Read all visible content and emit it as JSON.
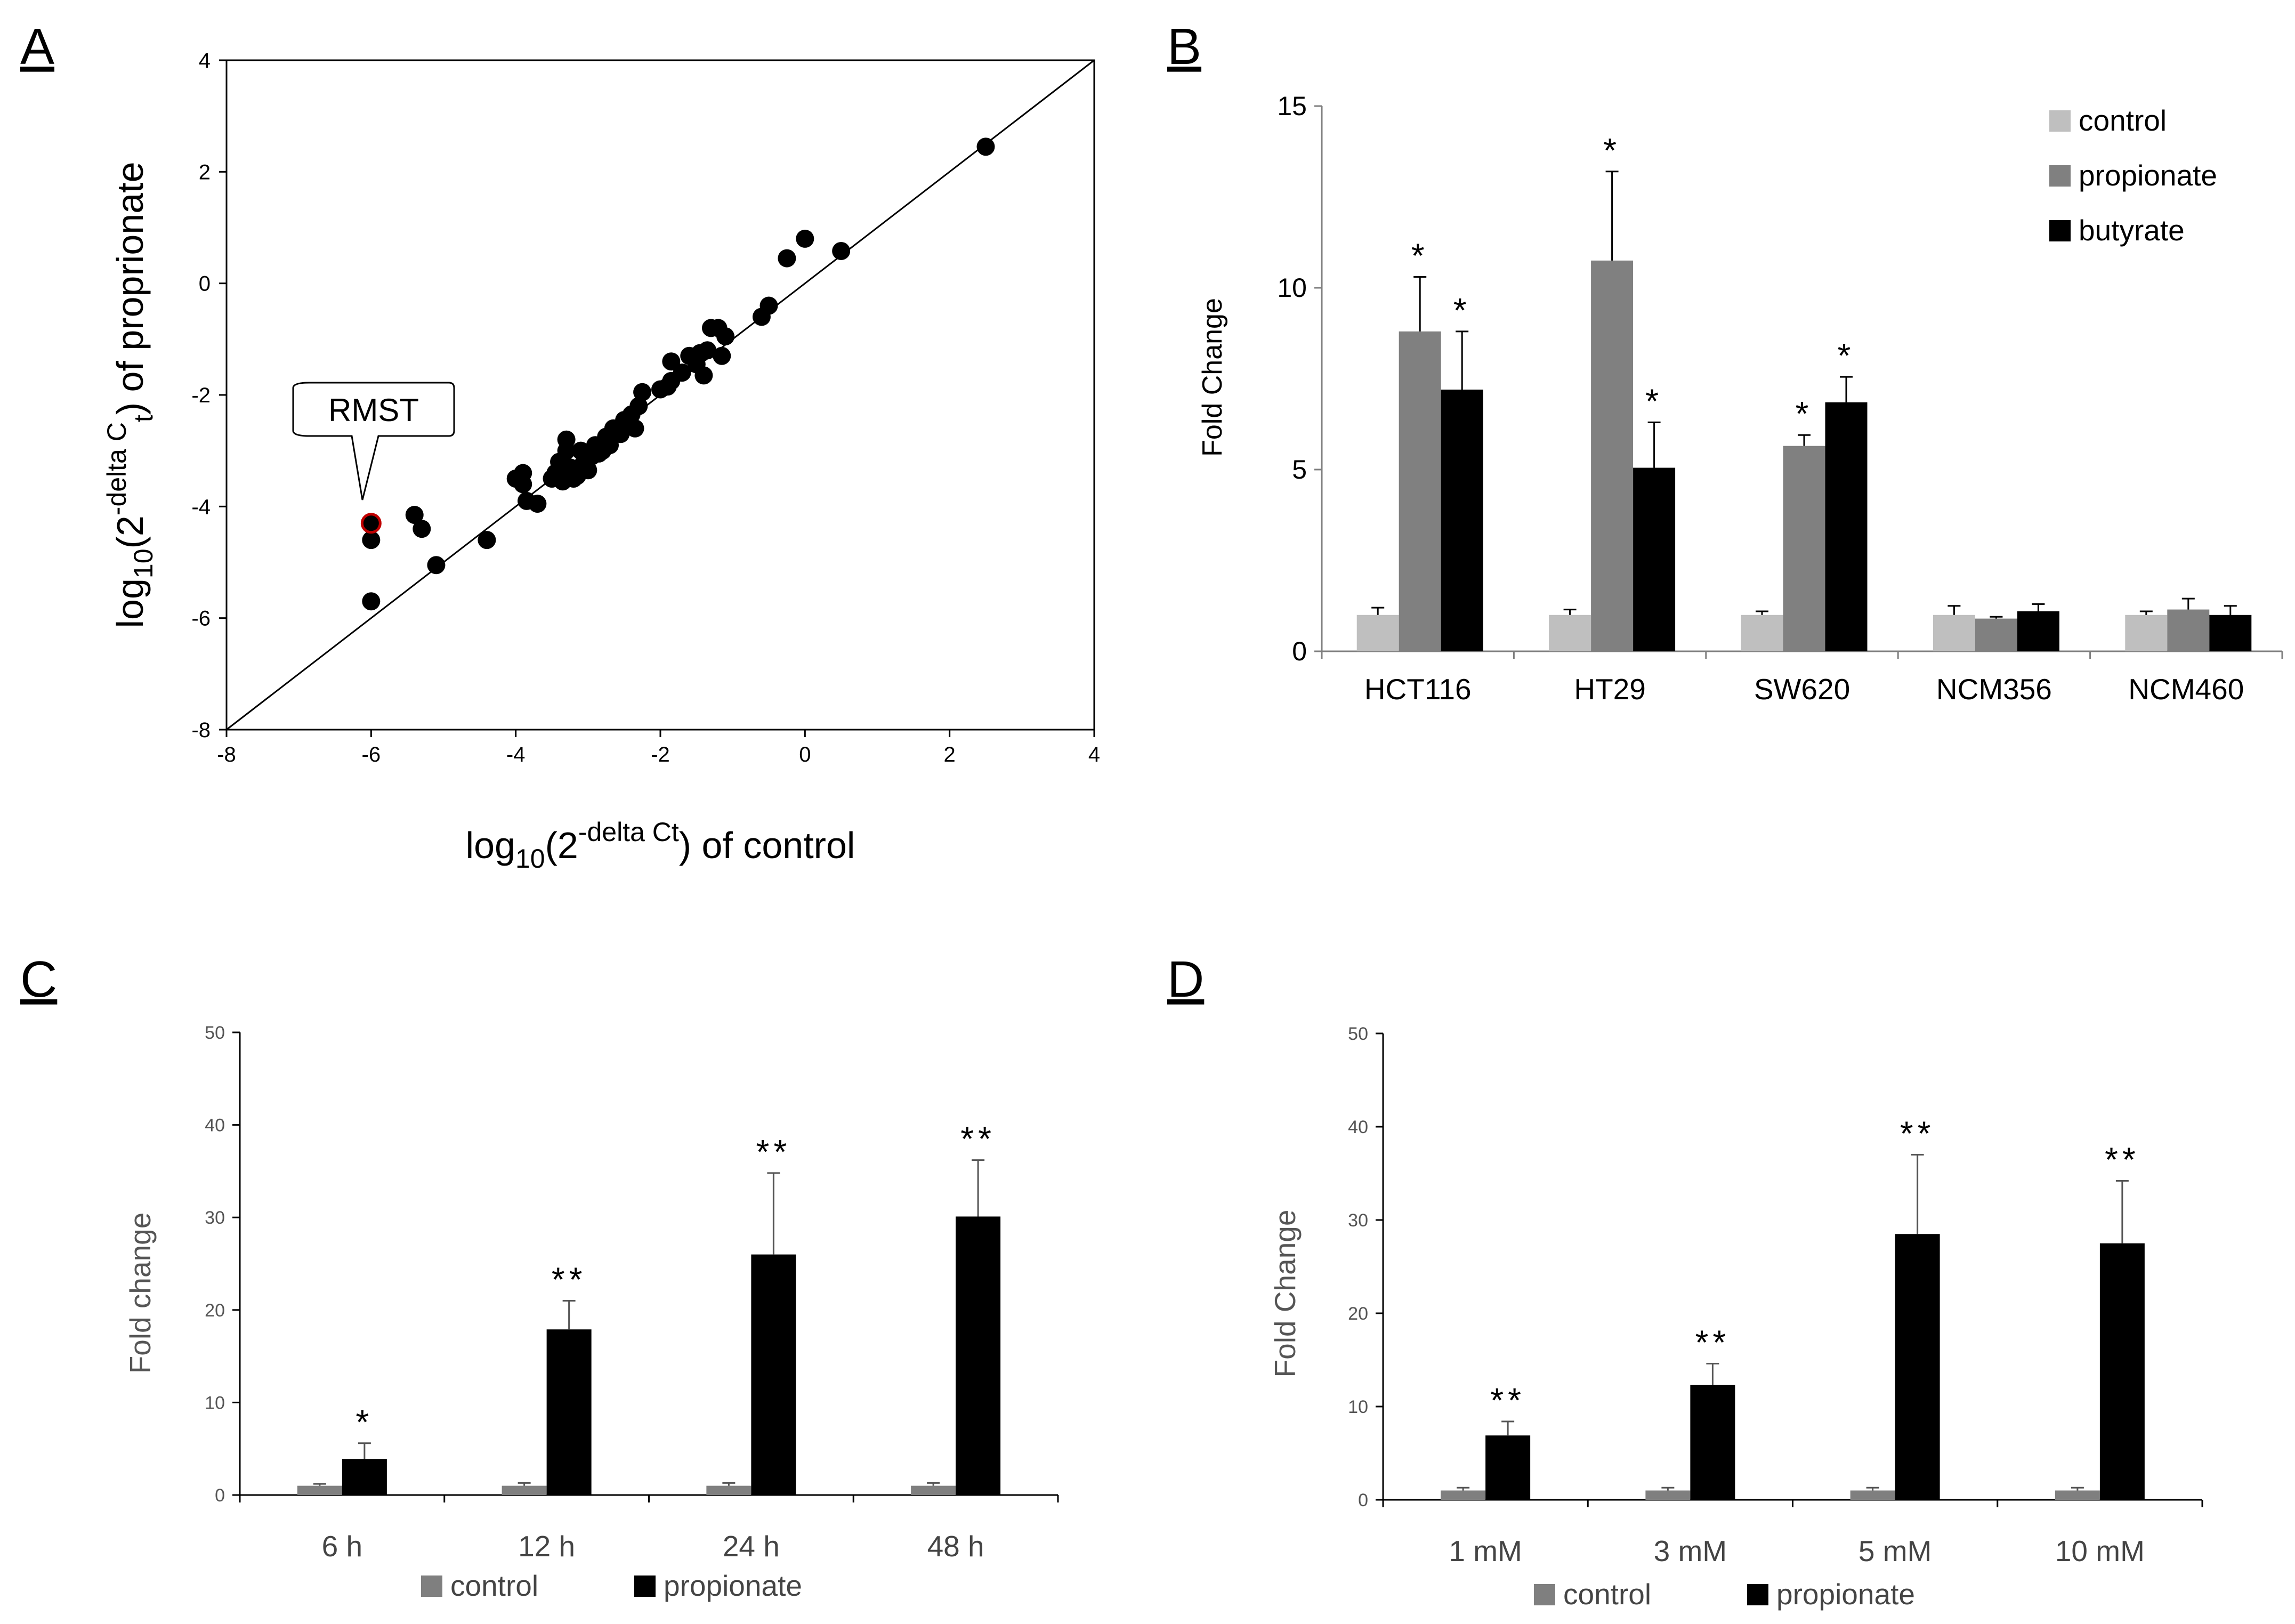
{
  "chart_data": [
    {
      "panel": "A",
      "type": "scatter",
      "xlabel_pre": "log",
      "xlabel_sub": "10",
      "xlabel_mid": "(2",
      "xlabel_sup": "-delta Ct",
      "xlabel_post": ") of control",
      "ylabel_pre": "log",
      "ylabel_sub": "10",
      "ylabel_mid": "(2",
      "ylabel_sup": "-delta C",
      "ylabel_sub2": "t",
      "ylabel_post": ") of proprionate",
      "xlim": [
        -8,
        4
      ],
      "ylim": [
        -8,
        4
      ],
      "xticks": [
        "-8",
        "-6",
        "-4",
        "-2",
        "0",
        "2",
        "4"
      ],
      "yticks": [
        "-8",
        "-6",
        "-4",
        "-2",
        "0",
        "2",
        "4"
      ],
      "annotation": "RMST",
      "highlight": {
        "x": -6.0,
        "y": -4.3
      },
      "points": [
        {
          "x": -6.0,
          "y": -4.6
        },
        {
          "x": -6.0,
          "y": -5.7
        },
        {
          "x": -5.4,
          "y": -4.15
        },
        {
          "x": -5.3,
          "y": -4.4
        },
        {
          "x": -5.1,
          "y": -5.05
        },
        {
          "x": -4.4,
          "y": -4.6
        },
        {
          "x": -4.0,
          "y": -3.5
        },
        {
          "x": -3.9,
          "y": -3.6
        },
        {
          "x": -3.9,
          "y": -3.4
        },
        {
          "x": -3.85,
          "y": -3.9
        },
        {
          "x": -3.7,
          "y": -3.95
        },
        {
          "x": -3.5,
          "y": -3.5
        },
        {
          "x": -3.45,
          "y": -3.4
        },
        {
          "x": -3.4,
          "y": -3.2
        },
        {
          "x": -3.35,
          "y": -3.55
        },
        {
          "x": -3.3,
          "y": -3.0
        },
        {
          "x": -3.3,
          "y": -2.8
        },
        {
          "x": -3.25,
          "y": -3.3
        },
        {
          "x": -3.2,
          "y": -3.5
        },
        {
          "x": -3.15,
          "y": -3.45
        },
        {
          "x": -3.1,
          "y": -3.0
        },
        {
          "x": -3.05,
          "y": -3.2
        },
        {
          "x": -3.0,
          "y": -3.35
        },
        {
          "x": -2.95,
          "y": -3.1
        },
        {
          "x": -2.9,
          "y": -2.9
        },
        {
          "x": -2.85,
          "y": -3.05
        },
        {
          "x": -2.8,
          "y": -3.0
        },
        {
          "x": -2.75,
          "y": -2.75
        },
        {
          "x": -2.7,
          "y": -2.9
        },
        {
          "x": -2.65,
          "y": -2.6
        },
        {
          "x": -2.6,
          "y": -2.65
        },
        {
          "x": -2.55,
          "y": -2.7
        },
        {
          "x": -2.5,
          "y": -2.45
        },
        {
          "x": -2.45,
          "y": -2.55
        },
        {
          "x": -2.4,
          "y": -2.35
        },
        {
          "x": -2.35,
          "y": -2.6
        },
        {
          "x": -2.3,
          "y": -2.2
        },
        {
          "x": -2.25,
          "y": -1.95
        },
        {
          "x": -2.0,
          "y": -1.9
        },
        {
          "x": -1.9,
          "y": -1.85
        },
        {
          "x": -1.85,
          "y": -1.75
        },
        {
          "x": -1.85,
          "y": -1.4
        },
        {
          "x": -1.7,
          "y": -1.6
        },
        {
          "x": -1.6,
          "y": -1.3
        },
        {
          "x": -1.5,
          "y": -1.45
        },
        {
          "x": -1.45,
          "y": -1.25
        },
        {
          "x": -1.4,
          "y": -1.65
        },
        {
          "x": -1.35,
          "y": -1.2
        },
        {
          "x": -1.3,
          "y": -0.8
        },
        {
          "x": -1.2,
          "y": -0.8
        },
        {
          "x": -1.15,
          "y": -1.3
        },
        {
          "x": -1.1,
          "y": -0.95
        },
        {
          "x": -0.6,
          "y": -0.6
        },
        {
          "x": -0.5,
          "y": -0.4
        },
        {
          "x": -0.25,
          "y": 0.45
        },
        {
          "x": 0.0,
          "y": 0.8
        },
        {
          "x": 0.5,
          "y": 0.58
        },
        {
          "x": 2.5,
          "y": 2.45
        }
      ]
    },
    {
      "panel": "B",
      "type": "bar",
      "ylabel": "Fold Change",
      "ylim": [
        0,
        15
      ],
      "yticks": [
        "0",
        "5",
        "10",
        "15"
      ],
      "categories": [
        "HCT116",
        "HT29",
        "SW620",
        "NCM356",
        "NCM460"
      ],
      "series": [
        {
          "name": "control",
          "color": "#bfbfbf",
          "values": [
            1.0,
            1.0,
            1.0,
            1.0,
            1.0
          ],
          "errors": [
            0.2,
            0.15,
            0.1,
            0.25,
            0.1
          ],
          "stars": [
            "",
            "",
            "",
            "",
            ""
          ]
        },
        {
          "name": "propionate",
          "color": "#808080",
          "values": [
            8.8,
            10.75,
            5.65,
            0.9,
            1.15
          ],
          "errors": [
            1.5,
            2.45,
            0.3,
            0.05,
            0.3
          ],
          "stars": [
            "*",
            "*",
            "*",
            "",
            ""
          ]
        },
        {
          "name": "butyrate",
          "color": "#000000",
          "values": [
            7.2,
            5.05,
            6.85,
            1.1,
            1.0
          ],
          "errors": [
            1.6,
            1.25,
            0.7,
            0.2,
            0.25
          ],
          "stars": [
            "*",
            "*",
            "*",
            "",
            ""
          ]
        }
      ]
    },
    {
      "panel": "C",
      "type": "bar",
      "ylabel": "Fold change",
      "ylim": [
        0,
        50
      ],
      "yticks": [
        "0",
        "10",
        "20",
        "30",
        "40",
        "50"
      ],
      "categories": [
        "6 h",
        "12 h",
        "24 h",
        "48 h"
      ],
      "series": [
        {
          "name": "control",
          "color": "#7f7f7f",
          "values": [
            1.0,
            1.0,
            1.0,
            1.0
          ],
          "errors": [
            0.2,
            0.3,
            0.3,
            0.3
          ],
          "stars": [
            "",
            "",
            "",
            ""
          ]
        },
        {
          "name": "propionate",
          "color": "#000000",
          "values": [
            3.9,
            17.9,
            26.0,
            30.1
          ],
          "errors": [
            1.7,
            3.1,
            8.8,
            6.1
          ],
          "stars": [
            "*",
            "**",
            "**",
            "**"
          ]
        }
      ]
    },
    {
      "panel": "D",
      "type": "bar",
      "ylabel": "Fold Change",
      "ylim": [
        0,
        50
      ],
      "yticks": [
        "0",
        "10",
        "20",
        "30",
        "40",
        "50"
      ],
      "categories": [
        "1 mM",
        "3 mM",
        "5 mM",
        "10 mM"
      ],
      "series": [
        {
          "name": "control",
          "color": "#7f7f7f",
          "values": [
            1.0,
            1.0,
            1.0,
            1.0
          ],
          "errors": [
            0.3,
            0.3,
            0.3,
            0.3
          ],
          "stars": [
            "",
            "",
            "",
            ""
          ]
        },
        {
          "name": "propionate",
          "color": "#000000",
          "values": [
            6.9,
            12.3,
            28.5,
            27.5
          ],
          "errors": [
            1.5,
            2.3,
            8.5,
            6.7
          ],
          "stars": [
            "**",
            "**",
            "**",
            "**"
          ]
        }
      ]
    }
  ]
}
